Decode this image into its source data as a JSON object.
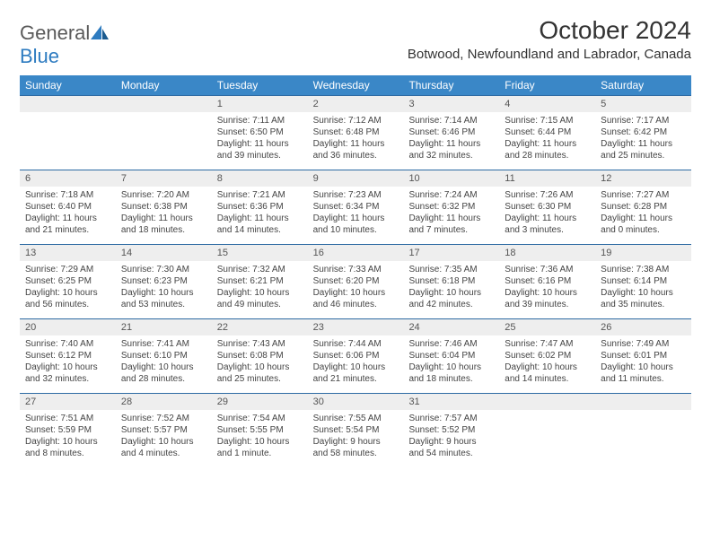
{
  "brand": {
    "word1": "General",
    "word2": "Blue"
  },
  "title": "October 2024",
  "location": "Botwood, Newfoundland and Labrador, Canada",
  "colors": {
    "header_bg": "#3a87c7",
    "row_border": "#2d6aa3",
    "daynum_bg": "#eeeeee",
    "text": "#333333"
  },
  "daysOfWeek": [
    "Sunday",
    "Monday",
    "Tuesday",
    "Wednesday",
    "Thursday",
    "Friday",
    "Saturday"
  ],
  "weeks": [
    [
      null,
      null,
      {
        "n": "1",
        "sr": "Sunrise: 7:11 AM",
        "ss": "Sunset: 6:50 PM",
        "dl1": "Daylight: 11 hours",
        "dl2": "and 39 minutes."
      },
      {
        "n": "2",
        "sr": "Sunrise: 7:12 AM",
        "ss": "Sunset: 6:48 PM",
        "dl1": "Daylight: 11 hours",
        "dl2": "and 36 minutes."
      },
      {
        "n": "3",
        "sr": "Sunrise: 7:14 AM",
        "ss": "Sunset: 6:46 PM",
        "dl1": "Daylight: 11 hours",
        "dl2": "and 32 minutes."
      },
      {
        "n": "4",
        "sr": "Sunrise: 7:15 AM",
        "ss": "Sunset: 6:44 PM",
        "dl1": "Daylight: 11 hours",
        "dl2": "and 28 minutes."
      },
      {
        "n": "5",
        "sr": "Sunrise: 7:17 AM",
        "ss": "Sunset: 6:42 PM",
        "dl1": "Daylight: 11 hours",
        "dl2": "and 25 minutes."
      }
    ],
    [
      {
        "n": "6",
        "sr": "Sunrise: 7:18 AM",
        "ss": "Sunset: 6:40 PM",
        "dl1": "Daylight: 11 hours",
        "dl2": "and 21 minutes."
      },
      {
        "n": "7",
        "sr": "Sunrise: 7:20 AM",
        "ss": "Sunset: 6:38 PM",
        "dl1": "Daylight: 11 hours",
        "dl2": "and 18 minutes."
      },
      {
        "n": "8",
        "sr": "Sunrise: 7:21 AM",
        "ss": "Sunset: 6:36 PM",
        "dl1": "Daylight: 11 hours",
        "dl2": "and 14 minutes."
      },
      {
        "n": "9",
        "sr": "Sunrise: 7:23 AM",
        "ss": "Sunset: 6:34 PM",
        "dl1": "Daylight: 11 hours",
        "dl2": "and 10 minutes."
      },
      {
        "n": "10",
        "sr": "Sunrise: 7:24 AM",
        "ss": "Sunset: 6:32 PM",
        "dl1": "Daylight: 11 hours",
        "dl2": "and 7 minutes."
      },
      {
        "n": "11",
        "sr": "Sunrise: 7:26 AM",
        "ss": "Sunset: 6:30 PM",
        "dl1": "Daylight: 11 hours",
        "dl2": "and 3 minutes."
      },
      {
        "n": "12",
        "sr": "Sunrise: 7:27 AM",
        "ss": "Sunset: 6:28 PM",
        "dl1": "Daylight: 11 hours",
        "dl2": "and 0 minutes."
      }
    ],
    [
      {
        "n": "13",
        "sr": "Sunrise: 7:29 AM",
        "ss": "Sunset: 6:25 PM",
        "dl1": "Daylight: 10 hours",
        "dl2": "and 56 minutes."
      },
      {
        "n": "14",
        "sr": "Sunrise: 7:30 AM",
        "ss": "Sunset: 6:23 PM",
        "dl1": "Daylight: 10 hours",
        "dl2": "and 53 minutes."
      },
      {
        "n": "15",
        "sr": "Sunrise: 7:32 AM",
        "ss": "Sunset: 6:21 PM",
        "dl1": "Daylight: 10 hours",
        "dl2": "and 49 minutes."
      },
      {
        "n": "16",
        "sr": "Sunrise: 7:33 AM",
        "ss": "Sunset: 6:20 PM",
        "dl1": "Daylight: 10 hours",
        "dl2": "and 46 minutes."
      },
      {
        "n": "17",
        "sr": "Sunrise: 7:35 AM",
        "ss": "Sunset: 6:18 PM",
        "dl1": "Daylight: 10 hours",
        "dl2": "and 42 minutes."
      },
      {
        "n": "18",
        "sr": "Sunrise: 7:36 AM",
        "ss": "Sunset: 6:16 PM",
        "dl1": "Daylight: 10 hours",
        "dl2": "and 39 minutes."
      },
      {
        "n": "19",
        "sr": "Sunrise: 7:38 AM",
        "ss": "Sunset: 6:14 PM",
        "dl1": "Daylight: 10 hours",
        "dl2": "and 35 minutes."
      }
    ],
    [
      {
        "n": "20",
        "sr": "Sunrise: 7:40 AM",
        "ss": "Sunset: 6:12 PM",
        "dl1": "Daylight: 10 hours",
        "dl2": "and 32 minutes."
      },
      {
        "n": "21",
        "sr": "Sunrise: 7:41 AM",
        "ss": "Sunset: 6:10 PM",
        "dl1": "Daylight: 10 hours",
        "dl2": "and 28 minutes."
      },
      {
        "n": "22",
        "sr": "Sunrise: 7:43 AM",
        "ss": "Sunset: 6:08 PM",
        "dl1": "Daylight: 10 hours",
        "dl2": "and 25 minutes."
      },
      {
        "n": "23",
        "sr": "Sunrise: 7:44 AM",
        "ss": "Sunset: 6:06 PM",
        "dl1": "Daylight: 10 hours",
        "dl2": "and 21 minutes."
      },
      {
        "n": "24",
        "sr": "Sunrise: 7:46 AM",
        "ss": "Sunset: 6:04 PM",
        "dl1": "Daylight: 10 hours",
        "dl2": "and 18 minutes."
      },
      {
        "n": "25",
        "sr": "Sunrise: 7:47 AM",
        "ss": "Sunset: 6:02 PM",
        "dl1": "Daylight: 10 hours",
        "dl2": "and 14 minutes."
      },
      {
        "n": "26",
        "sr": "Sunrise: 7:49 AM",
        "ss": "Sunset: 6:01 PM",
        "dl1": "Daylight: 10 hours",
        "dl2": "and 11 minutes."
      }
    ],
    [
      {
        "n": "27",
        "sr": "Sunrise: 7:51 AM",
        "ss": "Sunset: 5:59 PM",
        "dl1": "Daylight: 10 hours",
        "dl2": "and 8 minutes."
      },
      {
        "n": "28",
        "sr": "Sunrise: 7:52 AM",
        "ss": "Sunset: 5:57 PM",
        "dl1": "Daylight: 10 hours",
        "dl2": "and 4 minutes."
      },
      {
        "n": "29",
        "sr": "Sunrise: 7:54 AM",
        "ss": "Sunset: 5:55 PM",
        "dl1": "Daylight: 10 hours",
        "dl2": "and 1 minute."
      },
      {
        "n": "30",
        "sr": "Sunrise: 7:55 AM",
        "ss": "Sunset: 5:54 PM",
        "dl1": "Daylight: 9 hours",
        "dl2": "and 58 minutes."
      },
      {
        "n": "31",
        "sr": "Sunrise: 7:57 AM",
        "ss": "Sunset: 5:52 PM",
        "dl1": "Daylight: 9 hours",
        "dl2": "and 54 minutes."
      },
      null,
      null
    ]
  ]
}
